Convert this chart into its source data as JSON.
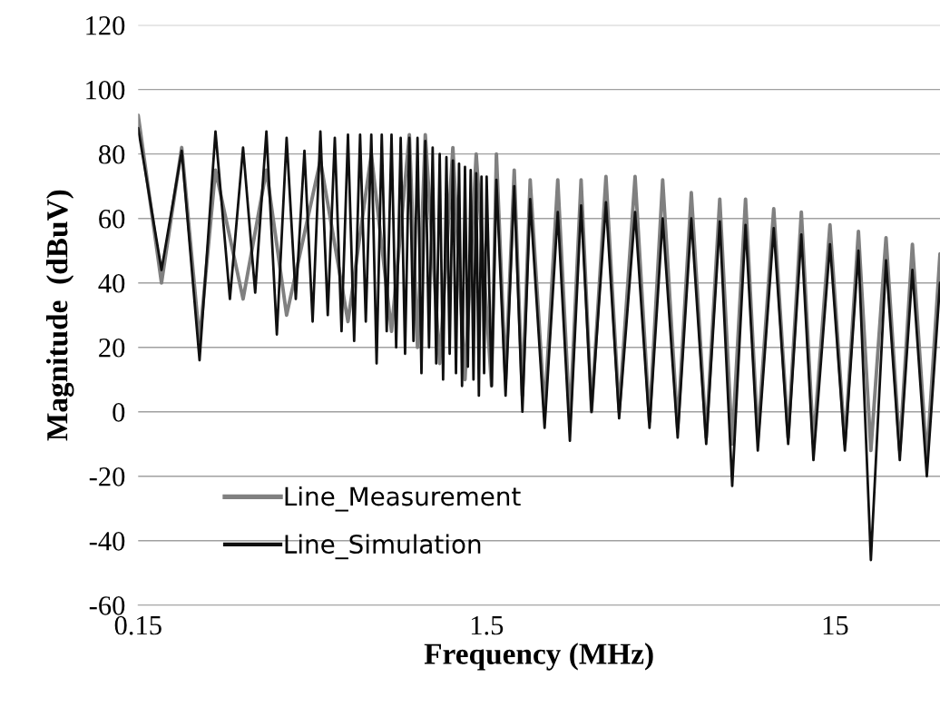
{
  "chart_data": {
    "type": "line",
    "xlabel": "Frequency (MHz)",
    "ylabel": "Magnitude  (dBuV)",
    "log": "x",
    "xlim": [
      0.15,
      30
    ],
    "xticks": [
      0.15,
      1.5,
      15
    ],
    "ylim": [
      -60,
      120
    ],
    "yticks": [
      -60,
      -40,
      -20,
      0,
      20,
      40,
      60,
      80,
      100,
      120
    ],
    "grid": "y",
    "legend": "bottom left",
    "line_style": "solid",
    "marker": "none",
    "series": [
      {
        "name": "Line_Measurement",
        "color": "#808080",
        "x": [
          0.15,
          0.175,
          0.2,
          0.225,
          0.25,
          0.3,
          0.35,
          0.4,
          0.5,
          0.6,
          0.7,
          0.8,
          0.9,
          0.95,
          1.0,
          1.1,
          1.2,
          1.3,
          1.4,
          1.55,
          1.6,
          1.7,
          1.8,
          1.9,
          2.0,
          2.2,
          2.4,
          2.6,
          2.8,
          3.0,
          3.3,
          3.6,
          4.0,
          4.4,
          4.8,
          5.3,
          5.8,
          6.4,
          7.0,
          7.6,
          8.3,
          9.0,
          10,
          11,
          12,
          13,
          14.5,
          16,
          17.5,
          19,
          21,
          23,
          25,
          27.5,
          30
        ],
        "values": [
          92,
          40,
          82,
          22,
          75,
          35,
          75,
          30,
          78,
          28,
          80,
          25,
          86,
          20,
          86,
          15,
          82,
          10,
          80,
          8,
          80,
          10,
          75,
          5,
          72,
          0,
          72,
          -3,
          72,
          0,
          73,
          0,
          73,
          -3,
          72,
          -5,
          68,
          -8,
          66,
          -10,
          66,
          -8,
          63,
          -8,
          62,
          -10,
          58,
          -10,
          56,
          -12,
          54,
          -12,
          52,
          -15,
          49
        ]
      },
      {
        "name": "Line_Simulation",
        "color": "#101010",
        "x": [
          0.15,
          0.175,
          0.2,
          0.225,
          0.25,
          0.275,
          0.3,
          0.325,
          0.35,
          0.375,
          0.4,
          0.425,
          0.45,
          0.475,
          0.5,
          0.525,
          0.55,
          0.575,
          0.6,
          0.625,
          0.65,
          0.675,
          0.7,
          0.725,
          0.75,
          0.775,
          0.8,
          0.825,
          0.85,
          0.875,
          0.9,
          0.925,
          0.95,
          0.975,
          1.0,
          1.025,
          1.05,
          1.075,
          1.1,
          1.125,
          1.15,
          1.175,
          1.2,
          1.225,
          1.25,
          1.275,
          1.3,
          1.325,
          1.35,
          1.375,
          1.4,
          1.425,
          1.45,
          1.475,
          1.5,
          1.55,
          1.6,
          1.7,
          1.8,
          1.9,
          2.0,
          2.2,
          2.4,
          2.6,
          2.8,
          3.0,
          3.3,
          3.6,
          4.0,
          4.4,
          4.8,
          5.3,
          5.8,
          6.4,
          7.0,
          7.6,
          8.3,
          9.0,
          10,
          11,
          12,
          13,
          14.5,
          16,
          17.5,
          19,
          21,
          23,
          25,
          27.5,
          30
        ],
        "values": [
          88,
          44,
          81,
          16,
          87,
          35,
          82,
          37,
          87,
          24,
          85,
          35,
          81,
          28,
          87,
          30,
          85,
          25,
          86,
          22,
          86,
          28,
          86,
          15,
          86,
          25,
          86,
          20,
          85,
          18,
          85,
          22,
          85,
          12,
          84,
          20,
          82,
          15,
          80,
          10,
          79,
          18,
          78,
          12,
          77,
          8,
          76,
          14,
          75,
          10,
          74,
          5,
          73,
          12,
          73,
          8,
          72,
          5,
          70,
          0,
          66,
          -5,
          62,
          -9,
          64,
          0,
          65,
          -2,
          62,
          -5,
          60,
          -8,
          60,
          -10,
          59,
          -23,
          58,
          -12,
          57,
          -10,
          55,
          -15,
          52,
          -12,
          50,
          -46,
          47,
          -15,
          44,
          -20,
          40
        ]
      }
    ]
  }
}
